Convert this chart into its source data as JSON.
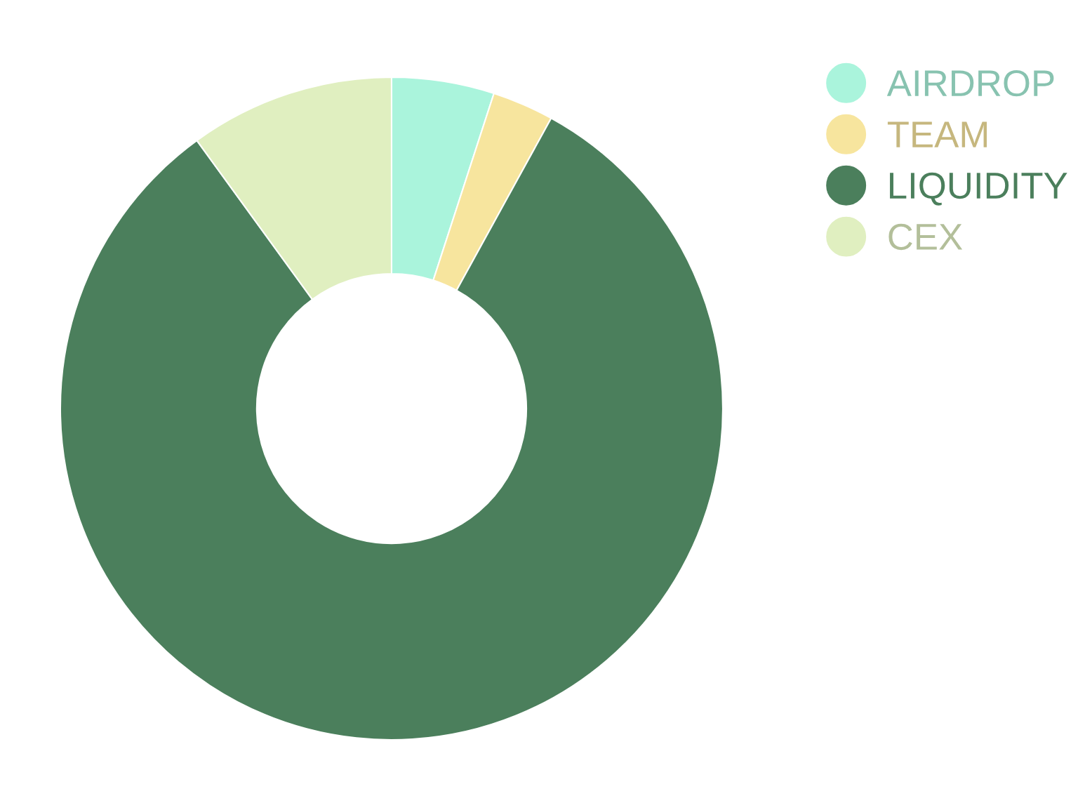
{
  "chart_data": {
    "type": "donut",
    "categories": [
      "AIRDROP",
      "TEAM",
      "LIQUIDITY",
      "CEX"
    ],
    "values": [
      5,
      3,
      82,
      10
    ],
    "colors": [
      "#aaf4dc",
      "#f7e59e",
      "#4b7f5c",
      "#e0efc0"
    ],
    "legend": "top right"
  }
}
